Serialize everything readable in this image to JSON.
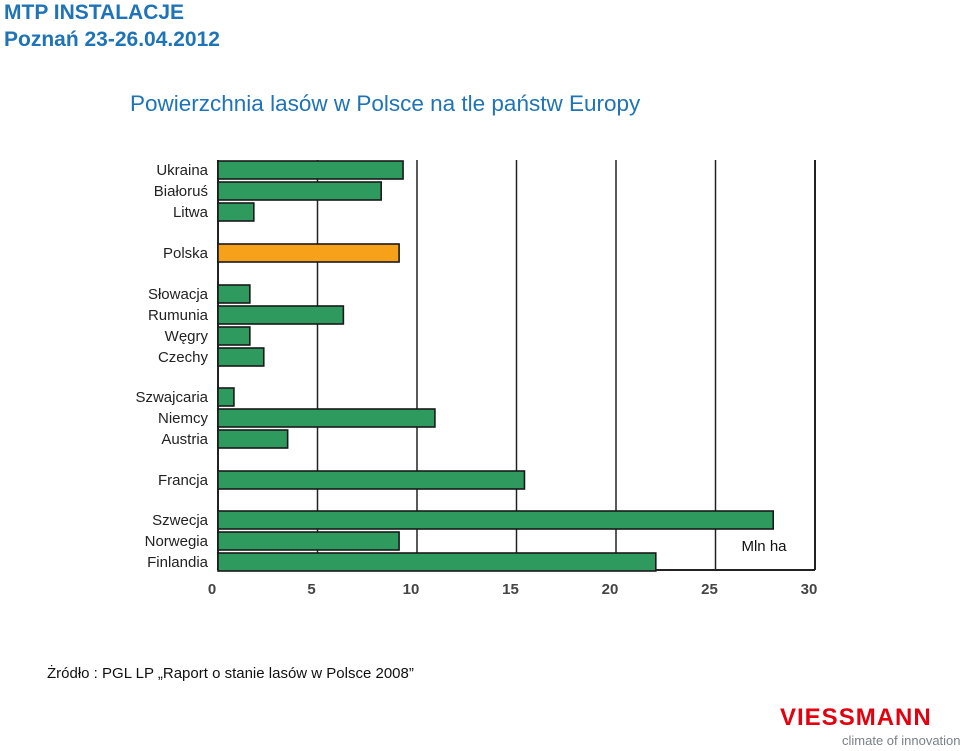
{
  "header": {
    "line1": "MTP INSTALACJE",
    "line2": "Poznań 23-26.04.2012"
  },
  "colors": {
    "header": "#1f73b7",
    "bar": "#2e9a5d",
    "highlight_bar": "#f7a11a",
    "grid": "#222222",
    "logo": "#e3000f"
  },
  "chart_data": {
    "type": "bar",
    "orientation": "horizontal",
    "title": "Powierzchnia lasów w Polsce na tle państw Europy",
    "unit_label": "Mln ha",
    "xlim": [
      0,
      30
    ],
    "x_ticks": [
      "0",
      "5",
      "10",
      "15",
      "20",
      "25",
      "30"
    ],
    "grid": true,
    "categories": [
      "Ukraina",
      "Białoruś",
      "Litwa",
      "Polska",
      "Słowacja",
      "Rumunia",
      "Węgry",
      "Czechy",
      "Szwajcaria",
      "Niemcy",
      "Austria",
      "Francja",
      "Szwecja",
      "Norwegia",
      "Finlandia"
    ],
    "values": [
      9.3,
      8.2,
      1.8,
      9.1,
      1.6,
      6.3,
      1.6,
      2.3,
      0.8,
      10.9,
      3.5,
      15.4,
      27.9,
      9.1,
      22.0
    ],
    "highlight": "Polska"
  },
  "footer": {
    "source": "Żródło :  PGL LP „Raport o stanie lasów w Polsce 2008”"
  },
  "logo": {
    "wordmark": "VIESSMANN",
    "tagline": "climate of innovation"
  }
}
